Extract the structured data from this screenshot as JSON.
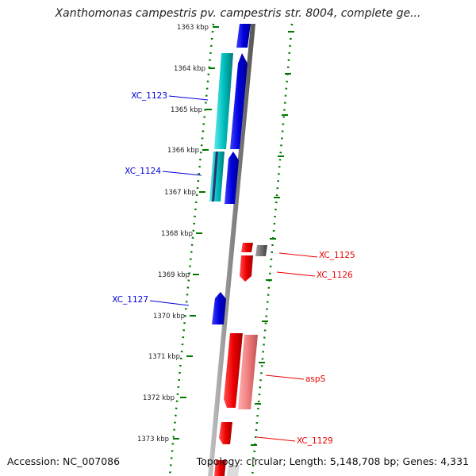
{
  "title": "Xanthomonas campestris pv. campestris str. 8004, complete ge...",
  "footer": {
    "accession": "Accession: NC_007086",
    "summary": "Topology: circular; Length: 5,148,708 bp; Genes: 4,331"
  },
  "colors": {
    "forward": "#0000dd",
    "forward_light": "#00c0c0",
    "reverse": "#ee0000",
    "reverse_light": "#f08080",
    "grey_feature": "#707070",
    "backbone": "#888888",
    "ticks": "#007700"
  },
  "ticks": [
    "1363 kbp",
    "1364 kbp",
    "1365 kbp",
    "1366 kbp",
    "1367 kbp",
    "1368 kbp",
    "1369 kbp",
    "1370 kbp",
    "1371 kbp",
    "1372 kbp",
    "1373 kbp"
  ],
  "genes": [
    {
      "label": "XC_1123",
      "strand": "forward"
    },
    {
      "label": "XC_1124",
      "strand": "forward"
    },
    {
      "label": "XC_1125",
      "strand": "reverse"
    },
    {
      "label": "XC_1126",
      "strand": "reverse"
    },
    {
      "label": "XC_1127",
      "strand": "forward"
    },
    {
      "label": "aspS",
      "strand": "reverse"
    },
    {
      "label": "XC_1129",
      "strand": "reverse"
    }
  ]
}
